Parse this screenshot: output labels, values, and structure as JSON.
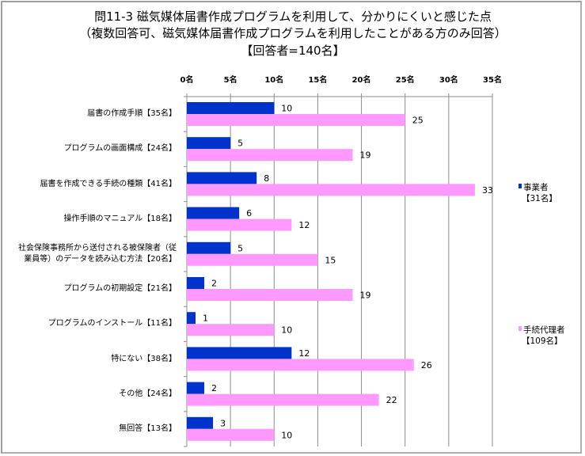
{
  "chart_data": {
    "type": "bar",
    "orientation": "horizontal",
    "title": [
      "問11-3  磁気媒体届書作成プログラムを利用して、分かりにくいと感じた点",
      "（複数回答可、磁気媒体届書作成プログラムを利用したことがある方のみ回答）",
      "【回答者=140名】"
    ],
    "xlabel": "",
    "ylabel": "",
    "xlim": [
      0,
      35
    ],
    "xticks": [
      0,
      5,
      10,
      15,
      20,
      25,
      30,
      35
    ],
    "tick_labels": [
      "0名",
      "5名",
      "10名",
      "15名",
      "20名",
      "25名",
      "30名",
      "35名"
    ],
    "grid": true,
    "categories": [
      "届書の作成手順【35名】",
      "プログラムの画面構成【24名】",
      "届書を作成できる手続の種類【41名】",
      "操作手順のマニュアル【18名】",
      [
        "社会保険事務所から送付される被保険者（従",
        "業員等）のデータを読み込む方法【20名】"
      ],
      "プログラムの初期設定【21名】",
      "プログラムのインストール【11名】",
      "特にない【38名】",
      "その他【24名】",
      "無回答【13名】"
    ],
    "series": [
      {
        "name": "事業者",
        "name_sub": "【31名】",
        "color": "#0033cc",
        "values": [
          10,
          5,
          8,
          6,
          5,
          2,
          1,
          12,
          2,
          3
        ]
      },
      {
        "name": "手続代理者",
        "name_sub": "【109名】",
        "color": "#ff99ff",
        "values": [
          25,
          19,
          33,
          12,
          15,
          19,
          10,
          26,
          22,
          10
        ]
      }
    ],
    "legend_position": "right"
  }
}
